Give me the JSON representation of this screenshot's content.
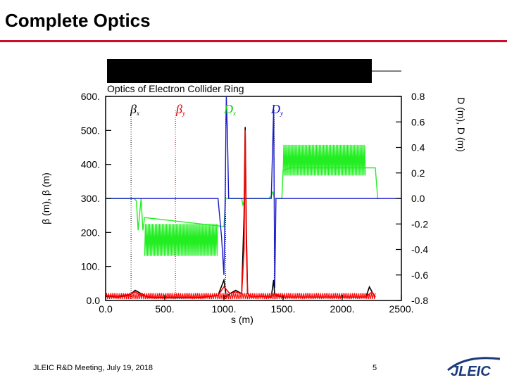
{
  "slide": {
    "title": "Complete Optics",
    "footer_meeting": "JLEIC R&D Meeting, July 19, 2018",
    "page_number": "5",
    "logo_text": "JLEIC",
    "accent_color": "#c8102e"
  },
  "chart_data": {
    "type": "line",
    "title": "Optics of Electron Collider Ring",
    "xlabel": "s (m)",
    "ylabel_left": "β (m), β (m)",
    "ylabel_right": "D (m), D (m)",
    "xlim": [
      0,
      2500
    ],
    "ylim_left": [
      0,
      600
    ],
    "ylim_right": [
      -0.8,
      0.8
    ],
    "x_ticks": [
      "0.0",
      "500.",
      "1000.",
      "1500.",
      "2000.",
      "2500."
    ],
    "y_ticks_left": [
      "0.0",
      "100.",
      "200.",
      "300.",
      "400.",
      "500.",
      "600."
    ],
    "y_ticks_right": [
      "-0.8",
      "-0.6",
      "-0.4",
      "-0.2",
      "0.0",
      "0.2",
      "0.4",
      "0.6",
      "0.8"
    ],
    "legend": [
      {
        "symbol": "β",
        "sub": "x",
        "color": "#000000"
      },
      {
        "symbol": "β",
        "sub": "y",
        "color": "#e00000"
      },
      {
        "symbol": "D",
        "sub": "x",
        "color": "#00cc00"
      },
      {
        "symbol": "D",
        "sub": "y",
        "color": "#1010cc"
      }
    ],
    "colors": {
      "beta_x": "#000000",
      "beta_y": "#ff0000",
      "d_x": "#22ee22",
      "d_y": "#1a1acc"
    },
    "marker_lines_s": [
      215,
      590,
      1015,
      1425
    ],
    "series": [
      {
        "key": "d_x",
        "axis": "right",
        "x": [
          0,
          240,
          260,
          275,
          290,
          300,
          315,
          330,
          1000,
          1015,
          1025,
          1050,
          1100,
          1150,
          1160,
          1180,
          1185,
          1200,
          1300,
          1350,
          1380,
          1400,
          1410,
          1415,
          1425,
          1440,
          1470,
          1490,
          1500,
          1560,
          2280,
          2300,
          2320
        ],
        "y": [
          0.0,
          0.0,
          -0.02,
          -0.25,
          -0.1,
          0.0,
          -0.25,
          -0.15,
          -0.22,
          0.0,
          0.0,
          0.0,
          0.0,
          0.0,
          -0.05,
          0.0,
          0.0,
          0.0,
          0.0,
          0.0,
          0.0,
          0.02,
          0.05,
          0.05,
          0.0,
          0.0,
          0.0,
          0.0,
          0.22,
          0.24,
          0.24,
          0.0,
          0.0
        ],
        "band_low": [
          {
            "x0": 330,
            "x1": 950,
            "lo": -0.45,
            "hi": -0.2
          },
          {
            "x0": 1500,
            "x1": 2200,
            "lo": 0.18,
            "hi": 0.42
          }
        ]
      },
      {
        "key": "d_y",
        "axis": "right",
        "x": [
          0,
          950,
          980,
          1000,
          1010,
          1020,
          1030,
          1040,
          1080,
          1120,
          1160,
          1300,
          1400,
          1420,
          1430,
          1440,
          1450,
          1460,
          1500,
          2500
        ],
        "y": [
          0.0,
          0.0,
          -0.3,
          -0.6,
          0.0,
          0.8,
          0.5,
          0.0,
          0.0,
          0.0,
          0.0,
          0.0,
          0.0,
          0.7,
          -0.7,
          0.0,
          0.0,
          0.0,
          0.0,
          0.0
        ],
        "x_max": 2270
      },
      {
        "key": "beta_x",
        "axis": "left",
        "x": [
          0,
          100,
          200,
          250,
          300,
          350,
          400,
          600,
          800,
          950,
          1000,
          1020,
          1050,
          1100,
          1150,
          1170,
          1180,
          1190,
          1200,
          1230,
          1300,
          1400,
          1420,
          1430,
          1500,
          1800,
          2000,
          2200,
          2230,
          2260,
          2280
        ],
        "y": [
          12,
          10,
          15,
          30,
          20,
          10,
          8,
          8,
          8,
          15,
          60,
          10,
          20,
          30,
          20,
          250,
          510,
          200,
          20,
          10,
          12,
          10,
          60,
          15,
          10,
          10,
          10,
          10,
          40,
          20,
          10
        ]
      },
      {
        "key": "beta_y",
        "axis": "left",
        "x": [
          0,
          100,
          200,
          250,
          300,
          400,
          600,
          800,
          950,
          1000,
          1050,
          1100,
          1150,
          1170,
          1180,
          1190,
          1200,
          1230,
          1300,
          1400,
          1430,
          1500,
          1800,
          2000,
          2200,
          2250,
          2280
        ],
        "y": [
          15,
          12,
          18,
          25,
          15,
          10,
          10,
          10,
          15,
          40,
          20,
          25,
          20,
          150,
          500,
          150,
          20,
          10,
          12,
          12,
          20,
          10,
          10,
          10,
          10,
          25,
          10
        ]
      }
    ]
  }
}
